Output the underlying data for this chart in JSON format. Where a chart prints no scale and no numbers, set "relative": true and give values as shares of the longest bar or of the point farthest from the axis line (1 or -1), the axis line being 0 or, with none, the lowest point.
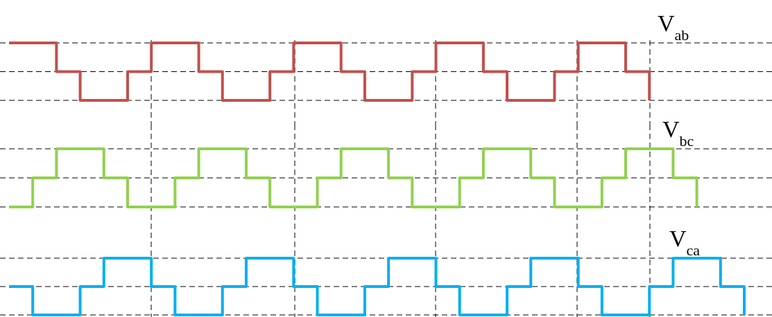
{
  "chart_data": [
    {
      "type": "step",
      "relative": true,
      "grid": true,
      "categories": [
        null,
        null,
        null,
        null,
        null,
        null,
        null,
        null,
        null,
        null,
        null,
        null,
        null,
        null,
        null,
        null,
        null,
        null,
        null,
        null,
        null,
        null,
        null,
        null,
        null,
        null,
        null,
        null,
        null,
        null,
        null,
        null
      ],
      "series": [
        {
          "name": "V$_{ab}$",
          "color": "#c0504d",
          "values": [
            1,
            1,
            0.5,
            0,
            0,
            0.5,
            1,
            1,
            0.5,
            0,
            0,
            0.5,
            1,
            1,
            0.5,
            0,
            0,
            0.5,
            1,
            1,
            0.5,
            0,
            0,
            0.5,
            1,
            1,
            0.5,
            0,
            null,
            null,
            null,
            null
          ]
        }
      ],
      "ref_lines": [
        {
          "axis": "y",
          "value": 0.5,
          "color": "#000000",
          "line_style": "dashed"
        }
      ]
    },
    {
      "type": "step",
      "relative": true,
      "grid": true,
      "categories": [
        null,
        null,
        null,
        null,
        null,
        null,
        null,
        null,
        null,
        null,
        null,
        null,
        null,
        null,
        null,
        null,
        null,
        null,
        null,
        null,
        null,
        null,
        null,
        null,
        null,
        null,
        null,
        null,
        null,
        null,
        null,
        null
      ],
      "series": [
        {
          "name": "V$_{bc}$",
          "color": "#92d050",
          "values": [
            0,
            0.5,
            1,
            1,
            0.5,
            0,
            0,
            0.5,
            1,
            1,
            0.5,
            0,
            0,
            0.5,
            1,
            1,
            0.5,
            0,
            0,
            0.5,
            1,
            1,
            0.5,
            0,
            0,
            0.5,
            1,
            1,
            0.5,
            0,
            null,
            null
          ]
        }
      ],
      "ref_lines": [
        {
          "axis": "y",
          "value": 0.5,
          "color": "#000000",
          "line_style": "dashed"
        }
      ]
    },
    {
      "type": "step",
      "relative": true,
      "grid": true,
      "categories": [
        null,
        null,
        null,
        null,
        null,
        null,
        null,
        null,
        null,
        null,
        null,
        null,
        null,
        null,
        null,
        null,
        null,
        null,
        null,
        null,
        null,
        null,
        null,
        null,
        null,
        null,
        null,
        null,
        null,
        null,
        null,
        null
      ],
      "series": [
        {
          "name": "V$_{ca}$",
          "color": "#00b0f0",
          "values": [
            0.5,
            0,
            0,
            0.5,
            1,
            1,
            0.5,
            0,
            0,
            0.5,
            1,
            1,
            0.5,
            0,
            0,
            0.5,
            1,
            1,
            0.5,
            0,
            0,
            0.5,
            1,
            1,
            0.5,
            0,
            0,
            0.5,
            1,
            1,
            0.5,
            0
          ]
        }
      ],
      "ref_lines": [
        {
          "axis": "y",
          "value": 0.5,
          "color": "#000000",
          "line_style": "dashed"
        }
      ]
    }
  ]
}
